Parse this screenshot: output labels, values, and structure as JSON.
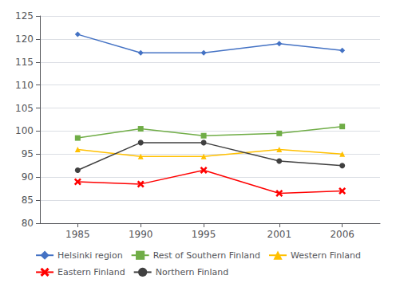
{
  "chart_data": {
    "type": "line",
    "x": [
      1985,
      1990,
      1995,
      2001,
      2006
    ],
    "series": [
      {
        "name": "Helsinki region",
        "color": "#4472C4",
        "marker": "diamond",
        "values": [
          121,
          117,
          117,
          119,
          117.5
        ]
      },
      {
        "name": "Rest of Southern Finland",
        "color": "#70AD47",
        "marker": "square",
        "values": [
          98.5,
          100.5,
          99,
          99.5,
          101
        ]
      },
      {
        "name": "Western Finland",
        "color": "#FFC000",
        "marker": "triangle",
        "values": [
          96,
          94.5,
          94.5,
          96,
          95
        ]
      },
      {
        "name": "Eastern Finland",
        "color": "#FF0000",
        "marker": "x",
        "values": [
          89,
          88.5,
          91.5,
          86.5,
          87
        ]
      },
      {
        "name": "Northern Finland",
        "color": "#404040",
        "marker": "circle",
        "values": [
          91.5,
          97.5,
          97.5,
          93.5,
          92.5
        ]
      }
    ],
    "xlim": [
      1982,
      2009
    ],
    "xticks": [
      1985,
      1990,
      1995,
      2001,
      2006
    ],
    "ylim": [
      80,
      125
    ],
    "yticks": [
      80,
      85,
      90,
      95,
      100,
      105,
      110,
      115,
      120,
      125
    ],
    "grid": true,
    "legend": "bottom"
  }
}
